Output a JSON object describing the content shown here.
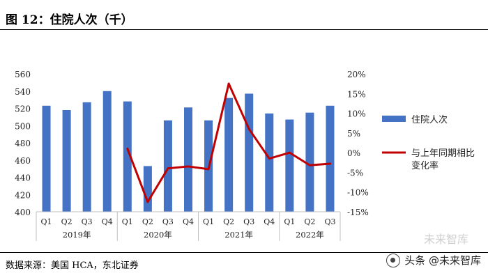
{
  "header": {
    "title": "图  12：住院人次（千）"
  },
  "footer": {
    "source": "数据来源：美国 HCA，东北证券",
    "watermark": "头条 @未来智库",
    "watermark_ghost": "未来智库"
  },
  "colors": {
    "bar": "#4472C4",
    "line": "#C00000",
    "axis": "#bfbfbf"
  },
  "chart_data": {
    "type": "bar+line",
    "categories": [
      "Q1",
      "Q2",
      "Q3",
      "Q4",
      "Q1",
      "Q2",
      "Q3",
      "Q4",
      "Q1",
      "Q2",
      "Q3",
      "Q4",
      "Q1",
      "Q2",
      "Q3"
    ],
    "year_groups": [
      {
        "label": "2019年",
        "count": 4
      },
      {
        "label": "2020年",
        "count": 4
      },
      {
        "label": "2021年",
        "count": 4
      },
      {
        "label": "2022年",
        "count": 3
      }
    ],
    "series": [
      {
        "name": "住院人次",
        "type": "bar",
        "axis": "left",
        "values": [
          523,
          518,
          527,
          540,
          528,
          453,
          506,
          521,
          506,
          532,
          537,
          514,
          507,
          515,
          523
        ]
      },
      {
        "name": "与上年同期相比变化率",
        "type": "line",
        "axis": "right",
        "values": [
          null,
          null,
          null,
          null,
          1.0,
          -12.5,
          -4.0,
          -3.5,
          -4.2,
          17.5,
          6.0,
          -1.5,
          0.0,
          -3.2,
          -2.8
        ]
      }
    ],
    "y_left": {
      "min": 400,
      "max": 560,
      "step": 20,
      "ticks": [
        "400",
        "420",
        "440",
        "460",
        "480",
        "500",
        "520",
        "540",
        "560"
      ]
    },
    "y_right": {
      "min": -15,
      "max": 20,
      "step": 5,
      "ticks": [
        "-15%",
        "-10%",
        "-5%",
        "0%",
        "5%",
        "10%",
        "15%",
        "20%"
      ]
    },
    "legend": {
      "placement": "right",
      "bar_label": "住院人次",
      "line_label_1": "与上年同期相比",
      "line_label_2": "变化率"
    }
  }
}
